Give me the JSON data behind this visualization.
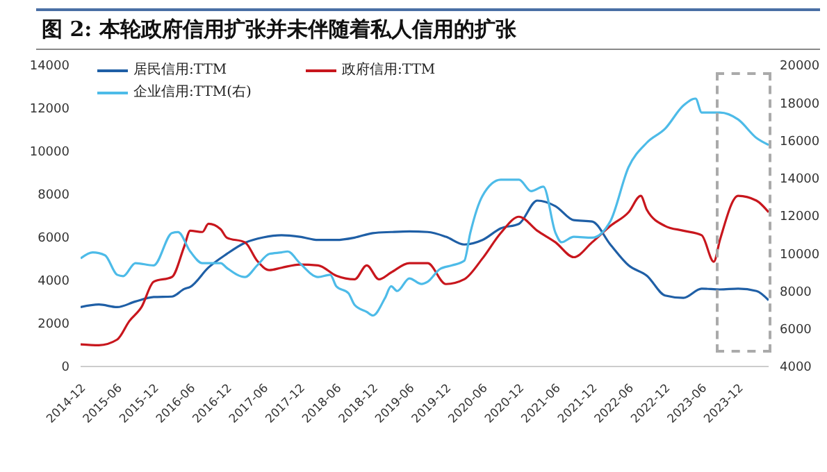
{
  "chart_data": {
    "type": "line",
    "title": "图 2:  本轮政府信用扩张并未伴随着私人信用的扩张",
    "xlim": [
      "2014-12",
      "2024-05"
    ],
    "xticks": [
      "2014-12",
      "2015-06",
      "2015-12",
      "2016-06",
      "2016-12",
      "2017-06",
      "2017-12",
      "2018-06",
      "2018-12",
      "2019-06",
      "2019-12",
      "2020-06",
      "2020-12",
      "2021-06",
      "2021-12",
      "2022-06",
      "2022-12",
      "2023-06",
      "2023-12"
    ],
    "ylim": [
      0,
      14000
    ],
    "yticks": [
      0,
      2000,
      4000,
      6000,
      8000,
      10000,
      12000,
      14000
    ],
    "y2lim": [
      4000,
      20000
    ],
    "y2ticks": [
      4000,
      6000,
      8000,
      10000,
      12000,
      14000,
      16000,
      18000,
      20000
    ],
    "legend": "top left",
    "marker": "none",
    "line_style": "solid",
    "series": [
      {
        "name": "居民信用:TTM",
        "color": "#1f5fa6",
        "x": [
          "2014-12",
          "2015-03",
          "2015-06",
          "2015-09",
          "2015-12",
          "2016-03",
          "2016-05",
          "2016-06",
          "2016-09",
          "2016-12",
          "2017-03",
          "2017-06",
          "2017-09",
          "2017-12",
          "2018-03",
          "2018-06",
          "2018-09",
          "2018-12",
          "2019-03",
          "2019-06",
          "2019-09",
          "2019-12",
          "2020-03",
          "2020-06",
          "2020-09",
          "2020-12",
          "2021-03",
          "2021-06",
          "2021-09",
          "2021-12",
          "2022-03",
          "2022-06",
          "2022-09",
          "2022-12",
          "2023-03",
          "2023-06",
          "2023-09",
          "2023-12",
          "2024-03",
          "2024-05"
        ],
        "values": [
          2760,
          2880,
          2760,
          3020,
          3230,
          3250,
          3600,
          3700,
          4600,
          5230,
          5750,
          6000,
          6100,
          6030,
          5880,
          5880,
          5990,
          6200,
          6250,
          6280,
          6250,
          6030,
          5670,
          5880,
          6420,
          6630,
          7710,
          7450,
          6800,
          6740,
          5670,
          4700,
          4220,
          3300,
          3190,
          3620,
          3580,
          3620,
          3510,
          3080
        ]
      },
      {
        "name": "政府信用:TTM",
        "color": "#c8161d",
        "x": [
          "2014-12",
          "2015-03",
          "2015-06",
          "2015-08",
          "2015-10",
          "2015-12",
          "2016-03",
          "2016-05",
          "2016-06",
          "2016-08",
          "2016-09",
          "2016-11",
          "2016-12",
          "2017-03",
          "2017-05",
          "2017-07",
          "2017-09",
          "2017-12",
          "2018-03",
          "2018-06",
          "2018-09",
          "2018-11",
          "2019-01",
          "2019-03",
          "2019-06",
          "2019-09",
          "2019-12",
          "2020-03",
          "2020-06",
          "2020-09",
          "2020-12",
          "2021-03",
          "2021-06",
          "2021-09",
          "2021-12",
          "2022-03",
          "2022-06",
          "2022-08",
          "2022-09",
          "2022-12",
          "2023-03",
          "2023-06",
          "2023-08",
          "2023-09",
          "2023-12",
          "2024-03",
          "2024-05"
        ],
        "values": [
          1030,
          990,
          1250,
          2110,
          2760,
          3940,
          4160,
          5560,
          6310,
          6250,
          6630,
          6380,
          5990,
          5770,
          4910,
          4480,
          4590,
          4740,
          4700,
          4220,
          4050,
          4700,
          4050,
          4370,
          4800,
          4800,
          3830,
          4050,
          5020,
          6200,
          6960,
          6310,
          5770,
          5080,
          5770,
          6530,
          7170,
          7930,
          7280,
          6530,
          6310,
          6100,
          4870,
          5880,
          7930,
          7710,
          7170
        ]
      },
      {
        "name": "企业信用:TTM(右)",
        "color": "#4dbbe8",
        "axis": "y2",
        "x": [
          "2014-12",
          "2015-02",
          "2015-04",
          "2015-06",
          "2015-07",
          "2015-09",
          "2015-12",
          "2016-03",
          "2016-04",
          "2016-06",
          "2016-08",
          "2016-11",
          "2016-12",
          "2017-03",
          "2017-05",
          "2017-07",
          "2017-09",
          "2017-10",
          "2017-12",
          "2018-03",
          "2018-05",
          "2018-06",
          "2018-08",
          "2018-09",
          "2018-11",
          "2018-12",
          "2019-02",
          "2019-03",
          "2019-04",
          "2019-06",
          "2019-08",
          "2019-09",
          "2019-11",
          "2020-01",
          "2020-03",
          "2020-04",
          "2020-06",
          "2020-09",
          "2020-12",
          "2021-02",
          "2021-04",
          "2021-06",
          "2021-07",
          "2021-09",
          "2021-12",
          "2022-03",
          "2022-06",
          "2022-09",
          "2022-12",
          "2023-03",
          "2023-05",
          "2023-06",
          "2023-09",
          "2023-12",
          "2024-03",
          "2024-05"
        ],
        "values": [
          9740,
          10060,
          9910,
          8870,
          8800,
          9490,
          9370,
          11090,
          11140,
          10110,
          9490,
          9490,
          9240,
          8750,
          9370,
          9980,
          10060,
          10110,
          9490,
          8750,
          8870,
          8260,
          7890,
          7270,
          6900,
          6710,
          7640,
          8260,
          8010,
          8680,
          8380,
          8500,
          9170,
          9370,
          9610,
          11090,
          13060,
          13920,
          13920,
          13310,
          13550,
          11090,
          10600,
          10890,
          10840,
          11710,
          14590,
          15890,
          16630,
          17860,
          18230,
          17490,
          17490,
          17120,
          16140,
          15770
        ]
      }
    ]
  }
}
